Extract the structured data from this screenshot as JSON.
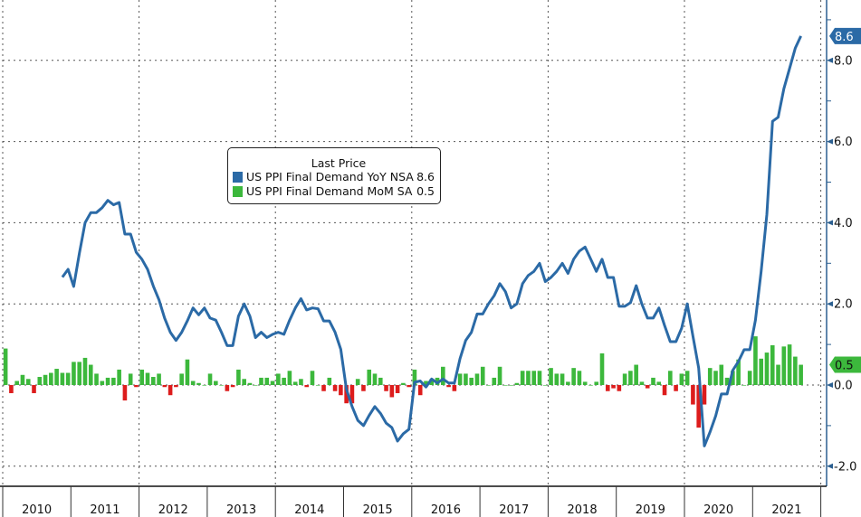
{
  "chart_data": {
    "type": "line+bar",
    "title": "",
    "legend": {
      "title": "Last Price",
      "placement": "center-left",
      "entries": [
        {
          "name": "US PPI Final Demand YoY NSA",
          "last": "8.6",
          "color": "#2b6aa6"
        },
        {
          "name": "US PPI Final Demand MoM SA",
          "last": "0.5",
          "color": "#3cb83c"
        }
      ]
    },
    "x_categories": [
      "2010",
      "2011",
      "2012",
      "2013",
      "2014",
      "2015",
      "2016",
      "2017",
      "2018",
      "2019",
      "2020",
      "2021"
    ],
    "ylim": [
      -2.45,
      9.5
    ],
    "y_ticks": [
      "8.0",
      "6.0",
      "4.0",
      "2.0",
      "0.0",
      "-2.0"
    ],
    "y_tick_values": [
      8,
      6,
      4,
      2,
      0,
      -2
    ],
    "grid": true,
    "colors": {
      "line": "#2b6aa6",
      "bar_pos": "#3cb83c",
      "bar_neg": "#dd1c1c",
      "axis": "#2b5f90"
    },
    "series": [
      {
        "name": "US PPI Final Demand YoY NSA",
        "type": "line",
        "start": "2010-11",
        "last_label": "8.6",
        "values": [
          2.66,
          2.85,
          2.43,
          3.25,
          4.0,
          4.25,
          4.25,
          4.37,
          4.55,
          4.44,
          4.5,
          3.72,
          3.72,
          3.27,
          3.1,
          2.85,
          2.44,
          2.1,
          1.65,
          1.3,
          1.1,
          1.3,
          1.58,
          1.9,
          1.73,
          1.9,
          1.65,
          1.6,
          1.3,
          0.97,
          0.97,
          1.7,
          2.0,
          1.7,
          1.17,
          1.3,
          1.17,
          1.25,
          1.3,
          1.25,
          1.6,
          1.9,
          2.13,
          1.85,
          1.9,
          1.88,
          1.58,
          1.58,
          1.3,
          0.88,
          -0.1,
          -0.53,
          -0.87,
          -1.0,
          -0.75,
          -0.53,
          -0.7,
          -0.94,
          -1.05,
          -1.38,
          -1.2,
          -1.09,
          0.07,
          0.1,
          -0.05,
          0.15,
          0.05,
          0.15,
          0.05,
          0.05,
          0.65,
          1.1,
          1.3,
          1.75,
          1.75,
          2.0,
          2.2,
          2.5,
          2.3,
          1.9,
          2.0,
          2.5,
          2.7,
          2.8,
          3.0,
          2.55,
          2.65,
          2.8,
          3.0,
          2.75,
          3.1,
          3.3,
          3.4,
          3.1,
          2.8,
          3.1,
          2.65,
          2.65,
          1.94,
          1.94,
          2.03,
          2.45,
          2.0,
          1.65,
          1.65,
          1.9,
          1.47,
          1.07,
          1.07,
          1.4,
          2.0,
          1.2,
          0.42,
          -1.5,
          -1.16,
          -0.76,
          -0.22,
          -0.22,
          0.36,
          0.58,
          0.87,
          0.87,
          1.6,
          2.8,
          4.2,
          6.5,
          6.6,
          7.3,
          7.8,
          8.3,
          8.6
        ]
      },
      {
        "name": "US PPI Final Demand MoM SA",
        "type": "bar",
        "start": "2010-01",
        "last_label": "0.5",
        "values": [
          0.9,
          -0.2,
          0.1,
          0.25,
          0.15,
          -0.2,
          0.2,
          0.25,
          0.3,
          0.4,
          0.3,
          0.3,
          0.57,
          0.57,
          0.67,
          0.5,
          0.28,
          0.1,
          0.18,
          0.18,
          0.38,
          -0.38,
          0.28,
          -0.05,
          0.38,
          0.3,
          0.2,
          0.28,
          -0.05,
          -0.25,
          -0.05,
          0.28,
          0.63,
          0.1,
          0.05,
          0.0,
          0.28,
          0.1,
          0.0,
          -0.15,
          -0.05,
          0.38,
          0.15,
          0.05,
          0.0,
          0.18,
          0.18,
          0.1,
          0.28,
          0.18,
          0.35,
          0.08,
          0.15,
          -0.05,
          0.35,
          0.0,
          -0.15,
          0.18,
          -0.15,
          -0.25,
          -0.45,
          -0.45,
          0.15,
          -0.15,
          0.38,
          0.28,
          0.18,
          -0.15,
          -0.3,
          -0.2,
          0.05,
          -0.05,
          0.38,
          -0.25,
          0.1,
          0.15,
          0.18,
          0.45,
          -0.05,
          -0.15,
          0.28,
          0.28,
          0.18,
          0.28,
          0.45,
          0.0,
          0.18,
          0.45,
          0.0,
          0.0,
          0.05,
          0.35,
          0.35,
          0.35,
          0.35,
          0.0,
          0.42,
          0.28,
          0.28,
          0.08,
          0.42,
          0.35,
          0.08,
          0.0,
          0.08,
          0.78,
          -0.15,
          -0.08,
          -0.15,
          0.28,
          0.35,
          0.5,
          0.08,
          -0.08,
          0.18,
          0.08,
          -0.25,
          0.35,
          -0.15,
          0.28,
          0.35,
          -0.48,
          -1.05,
          -0.48,
          0.42,
          0.35,
          0.5,
          0.18,
          0.35,
          0.63,
          0.0,
          0.35,
          1.2,
          0.65,
          0.8,
          0.98,
          0.5,
          0.95,
          1.0,
          0.7,
          0.5
        ]
      }
    ]
  }
}
